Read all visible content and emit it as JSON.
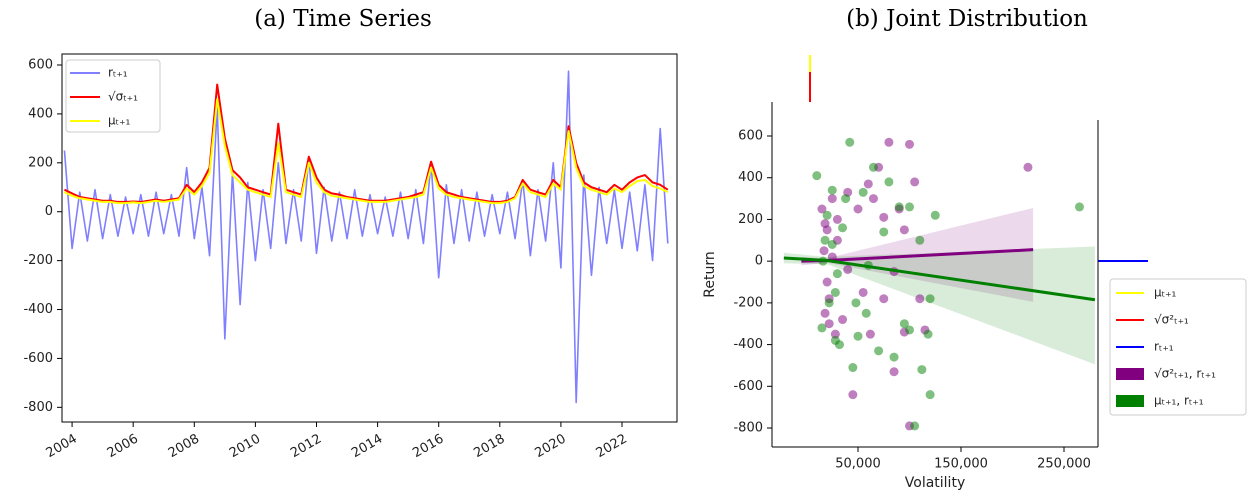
{
  "chart_data": [
    {
      "type": "line",
      "title": "(a) Time Series",
      "x": [
        2003.75,
        2004,
        2004.25,
        2004.5,
        2004.75,
        2005,
        2005.25,
        2005.5,
        2005.75,
        2006,
        2006.25,
        2006.5,
        2006.75,
        2007,
        2007.25,
        2007.5,
        2007.75,
        2008,
        2008.25,
        2008.5,
        2008.75,
        2009,
        2009.25,
        2009.5,
        2009.75,
        2010,
        2010.25,
        2010.5,
        2010.75,
        2011,
        2011.25,
        2011.5,
        2011.75,
        2012,
        2012.25,
        2012.5,
        2012.75,
        2013,
        2013.25,
        2013.5,
        2013.75,
        2014,
        2014.25,
        2014.5,
        2014.75,
        2015,
        2015.25,
        2015.5,
        2015.75,
        2016,
        2016.25,
        2016.5,
        2016.75,
        2017,
        2017.25,
        2017.5,
        2017.75,
        2018,
        2018.25,
        2018.5,
        2018.75,
        2019,
        2019.25,
        2019.5,
        2019.75,
        2020,
        2020.25,
        2020.5,
        2020.75,
        2021,
        2021.25,
        2021.5,
        2021.75,
        2022,
        2022.25,
        2022.5,
        2022.75,
        2023,
        2023.25,
        2023.5
      ],
      "xlim": [
        2003.67,
        2023.8
      ],
      "xticks": [
        2004,
        2006,
        2008,
        2010,
        2012,
        2014,
        2016,
        2018,
        2020,
        2022
      ],
      "ylim": [
        -860,
        645
      ],
      "yticks": [
        600,
        400,
        200,
        0,
        -200,
        -400,
        -600,
        -800
      ],
      "legend": "upper left",
      "series": [
        {
          "name": "rₜ₊₁",
          "color": "#8080ff",
          "values": [
            250,
            -150,
            80,
            -120,
            90,
            -110,
            70,
            -100,
            60,
            -90,
            70,
            -100,
            80,
            -90,
            70,
            -100,
            180,
            -110,
            100,
            -180,
            430,
            -520,
            160,
            -380,
            120,
            -200,
            90,
            -150,
            200,
            -130,
            90,
            -120,
            220,
            -170,
            100,
            -120,
            80,
            -110,
            90,
            -100,
            70,
            -90,
            60,
            -100,
            80,
            -110,
            90,
            -130,
            200,
            -270,
            110,
            -130,
            90,
            -120,
            80,
            -100,
            70,
            -90,
            80,
            -110,
            130,
            -180,
            90,
            -120,
            200,
            -230,
            575,
            -780,
            150,
            -260,
            100,
            -130,
            90,
            -150,
            80,
            -160,
            110,
            -200,
            340,
            -130
          ]
        },
        {
          "name": "√σₜ₊₁",
          "color": "#ff0000",
          "values": [
            90,
            75,
            60,
            55,
            50,
            45,
            45,
            40,
            40,
            42,
            40,
            45,
            50,
            45,
            50,
            55,
            110,
            80,
            120,
            180,
            520,
            300,
            170,
            140,
            100,
            90,
            80,
            70,
            360,
            90,
            80,
            70,
            225,
            140,
            90,
            75,
            70,
            60,
            55,
            50,
            45,
            45,
            45,
            50,
            55,
            60,
            70,
            80,
            205,
            110,
            80,
            70,
            60,
            55,
            50,
            45,
            40,
            40,
            45,
            60,
            130,
            90,
            80,
            70,
            130,
            100,
            350,
            200,
            120,
            100,
            90,
            80,
            110,
            90,
            120,
            140,
            150,
            120,
            110,
            90
          ]
        },
        {
          "name": "μₜ₊₁",
          "color": "#ffff00",
          "values": [
            80,
            65,
            55,
            50,
            45,
            40,
            40,
            35,
            35,
            38,
            35,
            40,
            45,
            40,
            45,
            50,
            95,
            70,
            105,
            160,
            460,
            270,
            150,
            120,
            90,
            80,
            70,
            60,
            280,
            80,
            70,
            60,
            200,
            120,
            80,
            65,
            60,
            55,
            50,
            45,
            40,
            40,
            40,
            45,
            50,
            55,
            60,
            70,
            180,
            95,
            70,
            60,
            55,
            50,
            45,
            40,
            35,
            35,
            40,
            55,
            115,
            80,
            70,
            60,
            115,
            90,
            330,
            180,
            105,
            90,
            80,
            70,
            95,
            80,
            105,
            125,
            130,
            105,
            95,
            80
          ]
        }
      ]
    },
    {
      "type": "scatter",
      "title": "(b) Joint Distribution",
      "xlabel": "Volatility",
      "ylabel": "Return",
      "xlim": [
        -33500,
        283000
      ],
      "xticks": [
        {
          "value": 50000,
          "label": "50,000"
        },
        {
          "value": 150000,
          "label": "150,000"
        },
        {
          "value": 250000,
          "label": "250,000"
        }
      ],
      "ylim": [
        -891,
        763
      ],
      "yticks": [
        600,
        400,
        200,
        0,
        -200,
        -400,
        -600,
        -800
      ],
      "legend": "center right",
      "marginals": [
        {
          "name": "μₜ₊₁",
          "color": "#ffff00"
        },
        {
          "name": "√σ²ₜ₊₁",
          "color": "#ff0000"
        },
        {
          "name": "rₜ₊₁",
          "color": "#0000ff"
        }
      ],
      "series": [
        {
          "name": "√σ²ₜ₊₁, rₜ₊₁",
          "color": "#800080",
          "x": [
            15000,
            18000,
            20000,
            22000,
            17000,
            25000,
            28000,
            30000,
            35000,
            40000,
            45000,
            50000,
            55000,
            60000,
            62000,
            65000,
            70000,
            75000,
            80000,
            85000,
            90000,
            95000,
            100000,
            100000,
            105000,
            110000,
            115000,
            95000,
            85000,
            75000,
            215000,
            40000,
            30000,
            20000,
            25000,
            18000,
            22000
          ],
          "values": [
            250,
            -250,
            150,
            -180,
            50,
            300,
            -350,
            200,
            -280,
            330,
            -640,
            250,
            -150,
            370,
            -350,
            300,
            450,
            -180,
            570,
            -530,
            250,
            -340,
            560,
            -790,
            380,
            -180,
            -330,
            150,
            -50,
            210,
            450,
            -40,
            100,
            -100,
            20,
            180,
            -300
          ],
          "fit": {
            "x": [
              -5000,
              20000,
              220000
            ],
            "y": [
              0,
              3,
              55
            ],
            "lower": [
              -20,
              -8,
              -195
            ],
            "upper": [
              20,
              14,
              255
            ]
          }
        },
        {
          "name": "μₜ₊₁, rₜ₊₁",
          "color": "#008000",
          "x": [
            10000,
            15000,
            20000,
            22000,
            18000,
            25000,
            28000,
            32000,
            38000,
            42000,
            45000,
            50000,
            55000,
            58000,
            65000,
            70000,
            80000,
            85000,
            90000,
            95000,
            100000,
            105000,
            110000,
            112000,
            118000,
            120000,
            125000,
            120000,
            265000,
            35000,
            30000,
            25000,
            60000,
            75000,
            100000,
            48000,
            28000,
            16000
          ],
          "values": [
            410,
            -320,
            220,
            -200,
            100,
            340,
            -380,
            -400,
            300,
            570,
            -510,
            -360,
            330,
            -250,
            450,
            -430,
            380,
            -460,
            260,
            -300,
            260,
            -790,
            100,
            -520,
            -350,
            -640,
            220,
            -180,
            260,
            160,
            -60,
            80,
            -20,
            140,
            -330,
            -200,
            -150,
            0
          ],
          "fit": {
            "x": [
              -22000,
              20000,
              280000
            ],
            "y": [
              15,
              3,
              -185
            ],
            "lower": [
              -10,
              -15,
              -495
            ],
            "upper": [
              40,
              20,
              70
            ]
          }
        }
      ]
    }
  ]
}
